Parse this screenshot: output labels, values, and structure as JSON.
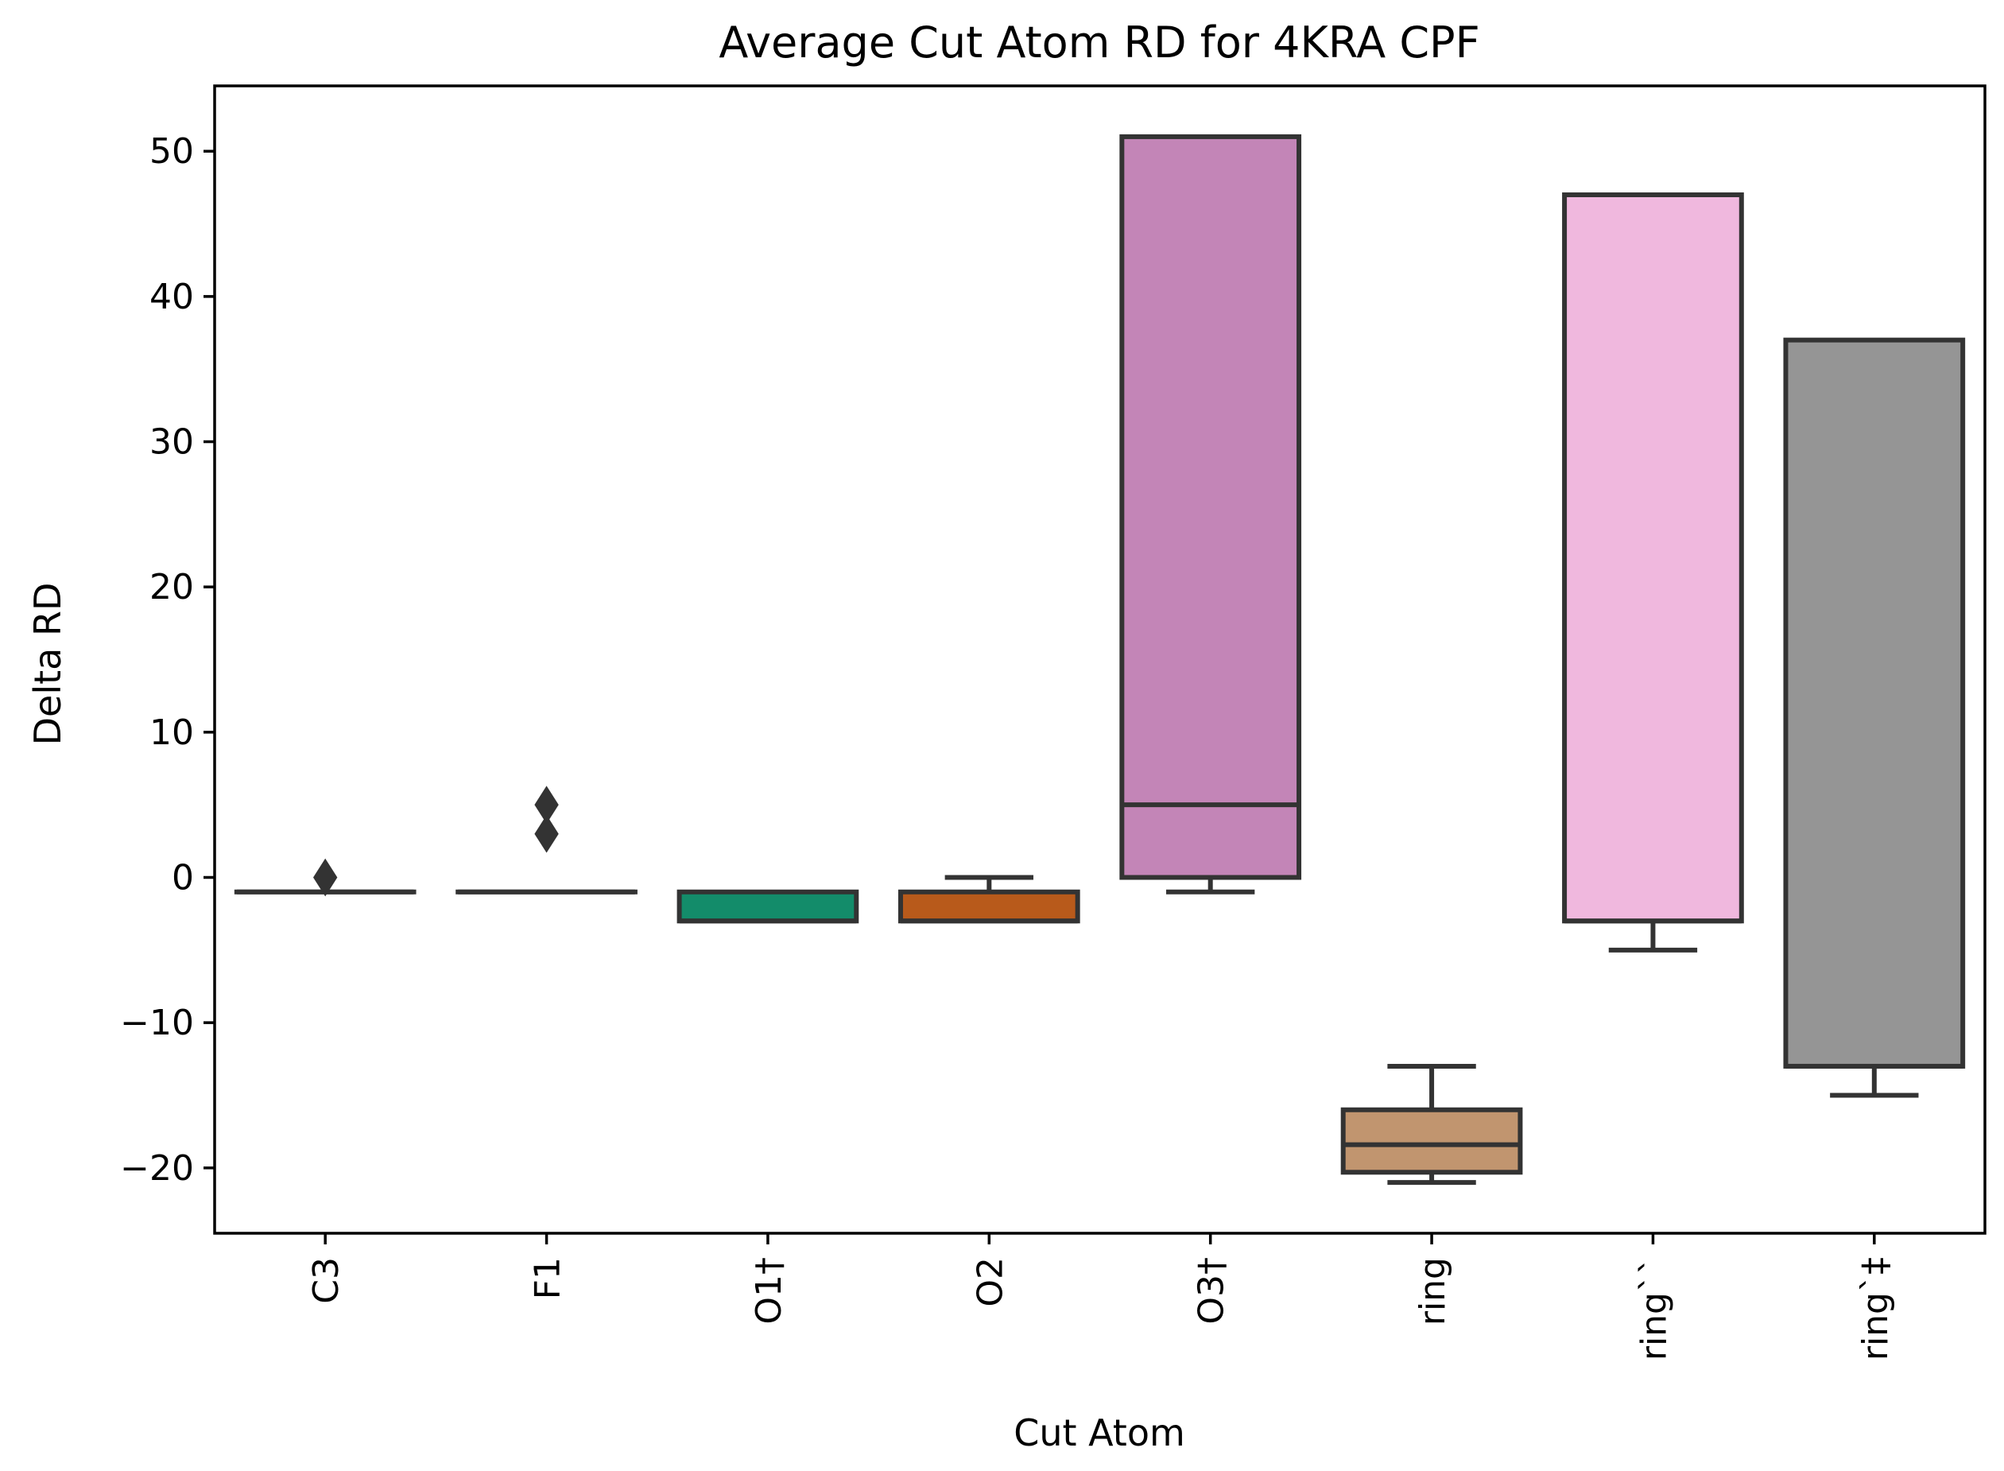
{
  "chart_data": {
    "type": "box",
    "title": "Average Cut Atom RD for 4KRA CPF",
    "xlabel": "Cut Atom",
    "ylabel": "Delta RD",
    "ylim": [
      -24.5,
      54.5
    ],
    "yticks": [
      -20,
      -10,
      0,
      10,
      20,
      30,
      40,
      50
    ],
    "ytick_labels": [
      "−20",
      "−10",
      "0",
      "10",
      "20",
      "30",
      "40",
      "50"
    ],
    "categories": [
      "C3",
      "F1",
      "O1†",
      "O2",
      "O3†",
      "ring",
      "ring``",
      "ring`‡"
    ],
    "boxes": [
      {
        "label": "C3",
        "q1": -1,
        "median": -1,
        "q3": -1,
        "whisker_low": -1,
        "whisker_high": -1,
        "fliers": [
          0
        ],
        "color": "#555555"
      },
      {
        "label": "F1",
        "q1": -1,
        "median": -1,
        "q3": -1,
        "whisker_low": -1,
        "whisker_high": -1,
        "fliers": [
          3,
          5
        ],
        "color": "#555555"
      },
      {
        "label": "O1†",
        "q1": -3,
        "median": -3,
        "q3": -1,
        "whisker_low": -3,
        "whisker_high": -1,
        "fliers": [],
        "color": "#138c6a"
      },
      {
        "label": "O2",
        "q1": -3,
        "median": -3,
        "q3": -1,
        "whisker_low": -3,
        "whisker_high": 0,
        "fliers": [],
        "color": "#b85a1b"
      },
      {
        "label": "O3†",
        "q1": 0,
        "median": 5,
        "q3": 51,
        "whisker_low": -1,
        "whisker_high": 51,
        "fliers": [],
        "color": "#c385b7"
      },
      {
        "label": "ring",
        "q1": -20.3,
        "median": -18.4,
        "q3": -16,
        "whisker_low": -21,
        "whisker_high": -13,
        "fliers": [],
        "color": "#c1956f"
      },
      {
        "label": "ring``",
        "q1": -3,
        "median": -3,
        "q3": 47,
        "whisker_low": -5,
        "whisker_high": 47,
        "fliers": [],
        "color": "#f0b8de"
      },
      {
        "label": "ring`‡",
        "q1": -13,
        "median": -13,
        "q3": 37,
        "whisker_low": -15,
        "whisker_high": 37,
        "fliers": [],
        "color": "#959595"
      }
    ]
  }
}
